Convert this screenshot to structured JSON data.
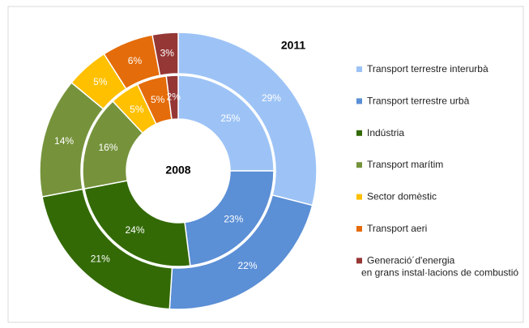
{
  "chart_data": {
    "type": "donut",
    "categories": [
      "Transport terrestre interurbà",
      "Transport terrestre urbà",
      "Indústria",
      "Transport marítim",
      "Sector domèstic",
      "Transport aeri",
      "Generació´d'energia\nen grans instal·lacions de combustió"
    ],
    "colors": [
      "#9dc3f6",
      "#5b8fd6",
      "#336a06",
      "#76933c",
      "#ffc000",
      "#e46c0a",
      "#953735"
    ],
    "series": [
      {
        "name": "2008",
        "values": [
          25,
          23,
          24,
          16,
          5,
          5,
          2
        ],
        "value_labels": [
          "25%",
          "23%",
          "24%",
          "16%",
          "5%",
          "5%",
          "2%"
        ]
      },
      {
        "name": "2011",
        "values": [
          29,
          22,
          21,
          14,
          5,
          6,
          3
        ],
        "value_labels": [
          "29%",
          "22%",
          "21%",
          "14%",
          "5%",
          "6%",
          "3%"
        ]
      }
    ]
  }
}
